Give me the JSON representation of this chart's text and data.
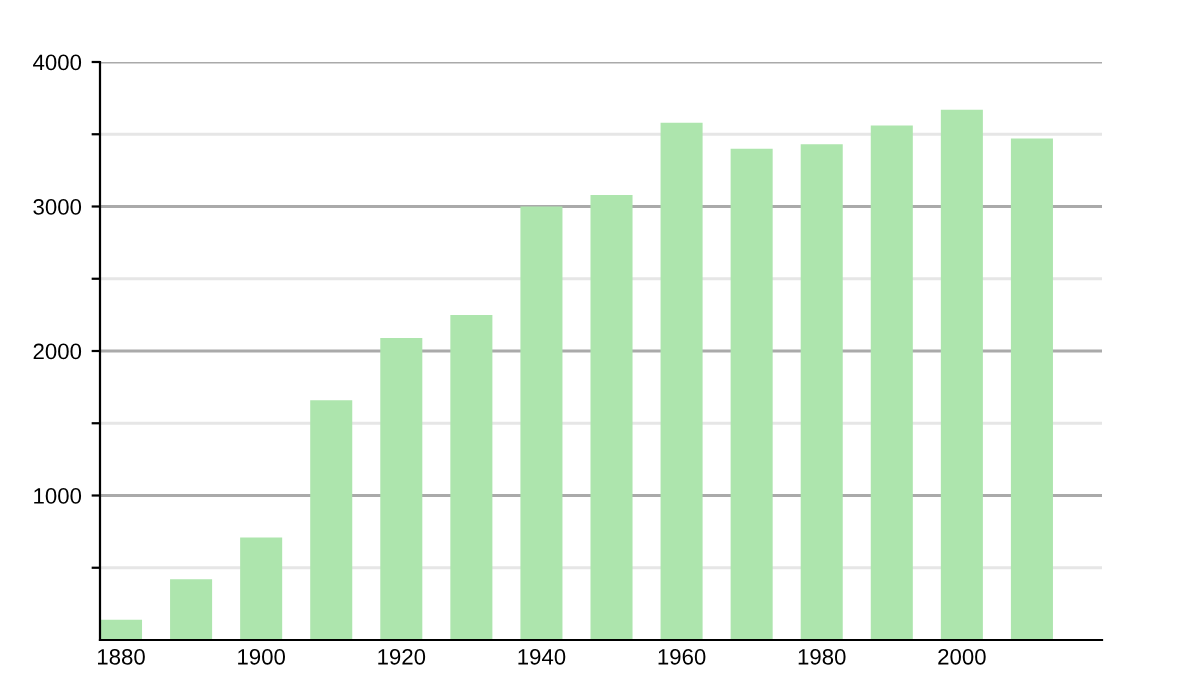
{
  "chart_data": {
    "type": "bar",
    "x": [
      1880,
      1890,
      1900,
      1910,
      1920,
      1930,
      1940,
      1950,
      1960,
      1970,
      1980,
      1990,
      2000,
      2010
    ],
    "values": [
      140,
      420,
      710,
      1660,
      2090,
      2250,
      3000,
      3080,
      3580,
      3400,
      3430,
      3560,
      3670,
      3470
    ],
    "color": "#ade5ad",
    "xlim": [
      1877,
      2020
    ],
    "xticks": [
      1880,
      1900,
      1920,
      1940,
      1960,
      1980,
      2000
    ],
    "ylim": [
      0,
      4000
    ],
    "yticks": [
      {
        "value": 500,
        "label": null
      },
      1000,
      {
        "value": 1500,
        "label": null
      },
      2000,
      {
        "value": 2500,
        "label": null
      },
      3000,
      {
        "value": 3500,
        "label": null
      },
      4000
    ],
    "grid": "y"
  }
}
